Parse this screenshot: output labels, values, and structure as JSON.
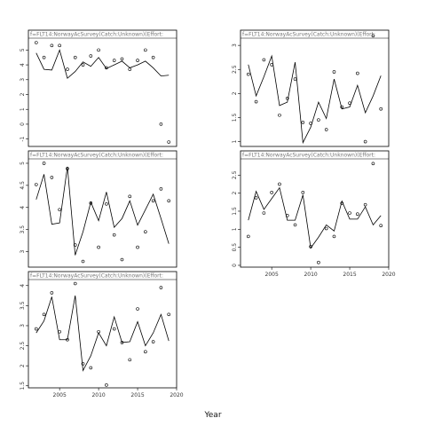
{
  "chart_data": {
    "type": "line",
    "xlabel": "Year",
    "panels": [
      {
        "title": "f=FLT14:NorwayAcSurvey(Catch:Unknown)(Effort:",
        "xlim": [
          2001,
          2020
        ],
        "ylim": [
          -1.5,
          5.8
        ],
        "yticks": [
          -1,
          0,
          1,
          2,
          3,
          4,
          5
        ],
        "xticks": [],
        "points": [
          [
            2002,
            5.5
          ],
          [
            2003,
            4.5
          ],
          [
            2004,
            5.3
          ],
          [
            2005,
            5.3
          ],
          [
            2006,
            3.7
          ],
          [
            2007,
            4.5
          ],
          [
            2008,
            4.0
          ],
          [
            2009,
            4.6
          ],
          [
            2010,
            5.0
          ],
          [
            2011,
            3.8
          ],
          [
            2012,
            4.3
          ],
          [
            2013,
            4.4
          ],
          [
            2014,
            3.7
          ],
          [
            2015,
            4.3
          ],
          [
            2016,
            5.0
          ],
          [
            2017,
            4.5
          ],
          [
            2018,
            0.0
          ],
          [
            2019,
            -1.2
          ]
        ],
        "fitted": [
          [
            2002,
            4.8
          ],
          [
            2003,
            3.7
          ],
          [
            2004,
            3.65
          ],
          [
            2005,
            5.0
          ],
          [
            2006,
            3.1
          ],
          [
            2007,
            3.55
          ],
          [
            2008,
            4.2
          ],
          [
            2009,
            3.9
          ],
          [
            2010,
            4.5
          ],
          [
            2011,
            3.75
          ],
          [
            2012,
            4.0
          ],
          [
            2013,
            4.25
          ],
          [
            2014,
            3.8
          ],
          [
            2015,
            4.0
          ],
          [
            2016,
            4.25
          ],
          [
            2017,
            3.8
          ],
          [
            2018,
            3.25
          ],
          [
            2019,
            3.3
          ]
        ]
      },
      {
        "title": "f=FLT14:NorwayAcSurvey(Catch:Unknown)(Effort:",
        "xlim": [
          2001,
          2020
        ],
        "ylim": [
          0.9,
          3.15
        ],
        "yticks": [
          1.0,
          1.5,
          2.0,
          2.5,
          3.0
        ],
        "xticks": [],
        "points": [
          [
            2002,
            2.4
          ],
          [
            2003,
            1.83
          ],
          [
            2004,
            2.7
          ],
          [
            2005,
            2.6
          ],
          [
            2006,
            1.55
          ],
          [
            2007,
            1.9
          ],
          [
            2008,
            2.3
          ],
          [
            2009,
            1.4
          ],
          [
            2010,
            1.38
          ],
          [
            2011,
            1.45
          ],
          [
            2012,
            1.25
          ],
          [
            2013,
            2.45
          ],
          [
            2014,
            1.72
          ],
          [
            2015,
            1.8
          ],
          [
            2016,
            2.42
          ],
          [
            2017,
            1.0
          ],
          [
            2018,
            3.2
          ],
          [
            2019,
            1.68
          ]
        ],
        "fitted": [
          [
            2002,
            2.6
          ],
          [
            2003,
            1.95
          ],
          [
            2004,
            2.35
          ],
          [
            2005,
            2.78
          ],
          [
            2006,
            1.75
          ],
          [
            2007,
            1.82
          ],
          [
            2008,
            2.65
          ],
          [
            2009,
            0.98
          ],
          [
            2010,
            1.3
          ],
          [
            2011,
            1.82
          ],
          [
            2012,
            1.48
          ],
          [
            2013,
            2.3
          ],
          [
            2014,
            1.68
          ],
          [
            2015,
            1.72
          ],
          [
            2016,
            2.17
          ],
          [
            2017,
            1.6
          ],
          [
            2018,
            1.95
          ],
          [
            2019,
            2.37
          ]
        ]
      },
      {
        "title": "f=FLT14:NorwayAcSurvey(Catch:Unknown)(Effort:",
        "xlim": [
          2001,
          2020
        ],
        "ylim": [
          2.65,
          5.1
        ],
        "yticks": [
          3.0,
          3.5,
          4.0,
          4.5,
          5.0
        ],
        "xticks": [],
        "points": [
          [
            2002,
            4.52
          ],
          [
            2003,
            5.0
          ],
          [
            2004,
            4.68
          ],
          [
            2005,
            3.95
          ],
          [
            2006,
            4.88
          ],
          [
            2007,
            3.15
          ],
          [
            2008,
            2.78
          ],
          [
            2009,
            4.1
          ],
          [
            2010,
            3.1
          ],
          [
            2011,
            4.08
          ],
          [
            2012,
            3.38
          ],
          [
            2013,
            2.82
          ],
          [
            2014,
            4.25
          ],
          [
            2015,
            3.1
          ],
          [
            2016,
            3.45
          ],
          [
            2017,
            4.15
          ],
          [
            2018,
            4.42
          ],
          [
            2019,
            4.15
          ]
        ],
        "fitted": [
          [
            2002,
            4.18
          ],
          [
            2003,
            4.75
          ],
          [
            2004,
            3.62
          ],
          [
            2005,
            3.65
          ],
          [
            2006,
            4.92
          ],
          [
            2007,
            2.92
          ],
          [
            2008,
            3.45
          ],
          [
            2009,
            4.12
          ],
          [
            2010,
            3.7
          ],
          [
            2011,
            4.35
          ],
          [
            2012,
            3.55
          ],
          [
            2013,
            3.75
          ],
          [
            2014,
            4.15
          ],
          [
            2015,
            3.6
          ],
          [
            2016,
            3.95
          ],
          [
            2017,
            4.3
          ],
          [
            2018,
            3.75
          ],
          [
            2019,
            3.18
          ]
        ]
      },
      {
        "title": "f=FLT14:NorwayAcSurvey(Catch:Unknown)(Effort:",
        "xlim": [
          2001,
          2020
        ],
        "ylim": [
          -0.05,
          2.95
        ],
        "yticks": [
          0.0,
          0.5,
          1.0,
          1.5,
          2.0,
          2.5
        ],
        "xticks": [
          2005,
          2010,
          2015,
          2020
        ],
        "points": [
          [
            2002,
            0.8
          ],
          [
            2003,
            1.87
          ],
          [
            2004,
            1.45
          ],
          [
            2005,
            2.02
          ],
          [
            2006,
            2.25
          ],
          [
            2007,
            1.38
          ],
          [
            2008,
            1.12
          ],
          [
            2009,
            2.02
          ],
          [
            2010,
            0.52
          ],
          [
            2011,
            0.08
          ],
          [
            2012,
            1.02
          ],
          [
            2013,
            0.8
          ],
          [
            2014,
            1.72
          ],
          [
            2015,
            1.45
          ],
          [
            2016,
            1.42
          ],
          [
            2017,
            1.68
          ],
          [
            2018,
            2.82
          ],
          [
            2019,
            1.1
          ]
        ],
        "fitted": [
          [
            2002,
            1.25
          ],
          [
            2003,
            2.05
          ],
          [
            2004,
            1.55
          ],
          [
            2005,
            1.85
          ],
          [
            2006,
            2.15
          ],
          [
            2007,
            1.25
          ],
          [
            2008,
            1.25
          ],
          [
            2009,
            1.95
          ],
          [
            2010,
            0.48
          ],
          [
            2011,
            0.78
          ],
          [
            2012,
            1.12
          ],
          [
            2013,
            0.95
          ],
          [
            2014,
            1.78
          ],
          [
            2015,
            1.28
          ],
          [
            2016,
            1.28
          ],
          [
            2017,
            1.62
          ],
          [
            2018,
            1.12
          ],
          [
            2019,
            1.38
          ]
        ]
      },
      {
        "title": "f=FLT14:NorwayAcSurvey(Catch:Unknown)(Effort:",
        "xlim": [
          2001,
          2020
        ],
        "ylim": [
          1.45,
          4.15
        ],
        "yticks": [
          1.5,
          2.0,
          2.5,
          3.0,
          3.5,
          4.0
        ],
        "xticks": [
          2005,
          2010,
          2015,
          2020
        ],
        "points": [
          [
            2002,
            2.92
          ],
          [
            2003,
            3.28
          ],
          [
            2004,
            3.82
          ],
          [
            2005,
            2.85
          ],
          [
            2006,
            2.65
          ],
          [
            2007,
            4.05
          ],
          [
            2008,
            2.05
          ],
          [
            2009,
            1.95
          ],
          [
            2010,
            2.85
          ],
          [
            2011,
            1.52
          ],
          [
            2012,
            2.92
          ],
          [
            2013,
            2.58
          ],
          [
            2014,
            2.15
          ],
          [
            2015,
            3.42
          ],
          [
            2016,
            2.35
          ],
          [
            2017,
            2.6
          ],
          [
            2018,
            3.95
          ],
          [
            2019,
            3.28
          ]
        ],
        "fitted": [
          [
            2002,
            2.82
          ],
          [
            2003,
            3.12
          ],
          [
            2004,
            3.72
          ],
          [
            2005,
            2.65
          ],
          [
            2006,
            2.65
          ],
          [
            2007,
            3.75
          ],
          [
            2008,
            1.88
          ],
          [
            2009,
            2.25
          ],
          [
            2010,
            2.82
          ],
          [
            2011,
            2.5
          ],
          [
            2012,
            3.22
          ],
          [
            2013,
            2.58
          ],
          [
            2014,
            2.6
          ],
          [
            2015,
            3.1
          ],
          [
            2016,
            2.5
          ],
          [
            2017,
            2.82
          ],
          [
            2018,
            3.28
          ],
          [
            2019,
            2.62
          ]
        ]
      }
    ]
  }
}
